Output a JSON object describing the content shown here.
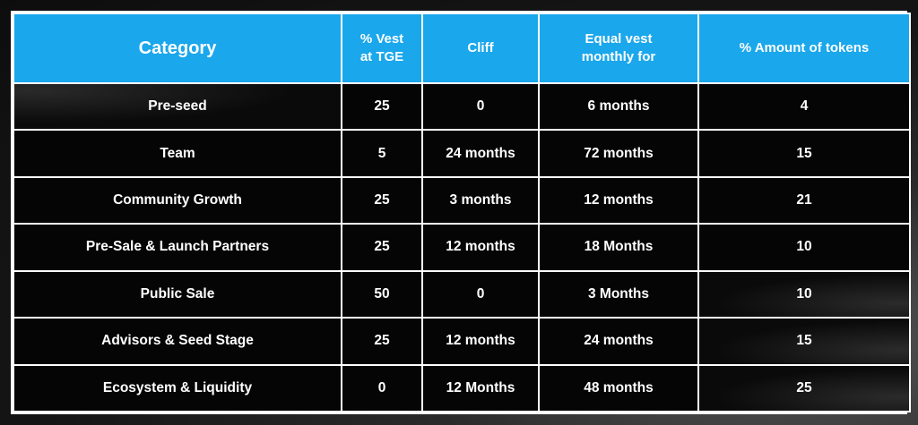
{
  "table": {
    "headers": [
      "Category",
      "% Vest\nat TGE",
      "Cliff",
      "Equal vest\nmonthly for",
      "% Amount of tokens"
    ],
    "header_lines": [
      [
        "Category"
      ],
      [
        "% Vest",
        "at TGE"
      ],
      [
        "Cliff"
      ],
      [
        "Equal vest",
        "monthly for"
      ],
      [
        "% Amount of tokens"
      ]
    ],
    "rows": [
      [
        "Pre-seed",
        "25",
        "0",
        "6 months",
        "4"
      ],
      [
        "Team",
        "5",
        "24 months",
        "72 months",
        "15"
      ],
      [
        "Community Growth",
        "25",
        "3 months",
        "12 months",
        "21"
      ],
      [
        "Pre-Sale & Launch Partners",
        "25",
        "12 months",
        "18 Months",
        "10"
      ],
      [
        "Public Sale",
        "50",
        "0",
        "3 Months",
        "10"
      ],
      [
        "Advisors & Seed Stage",
        "25",
        "12 months",
        "24 months",
        "15"
      ],
      [
        "Ecosystem & Liquidity",
        "0",
        "12 Months",
        "48 months",
        "25"
      ]
    ]
  },
  "colors": {
    "header_bg": "#1aa7ec",
    "body_bg": "#050505",
    "border": "#ffffff",
    "text": "#ffffff"
  }
}
